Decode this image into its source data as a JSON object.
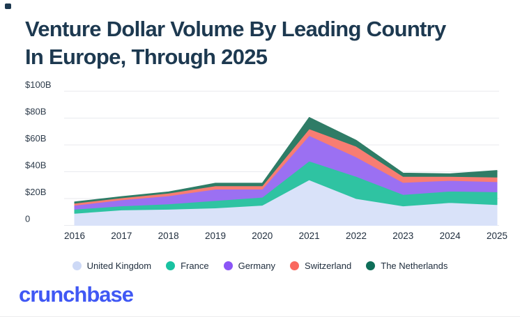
{
  "title": {
    "line1": "Venture Dollar Volume By Leading Country",
    "line2": "In Europe, Through 2025"
  },
  "footer": {
    "logo_text": "crunchbase",
    "logo_color": "#4058f4"
  },
  "colors": {
    "title_text": "#1d3950",
    "axis_text": "#2e3c4b",
    "gridline": "#e9eaee",
    "background": "#ffffff"
  },
  "chart_data": {
    "type": "area",
    "stacked": true,
    "title": "Venture Dollar Volume By Leading Country In Europe, Through 2025",
    "x": [
      2016,
      2017,
      2018,
      2019,
      2020,
      2021,
      2022,
      2023,
      2024,
      2025
    ],
    "x_tick_labels": [
      "2016",
      "2017",
      "2018",
      "2019",
      "2020",
      "2021",
      "2022",
      "2023",
      "2024",
      "2025"
    ],
    "unit": "$B",
    "series": [
      {
        "name": "United Kingdom",
        "color": "#d9e2f9",
        "legend_color": "#cdd9f6",
        "values": [
          9,
          11.5,
          12,
          13,
          15,
          34,
          20,
          14.5,
          17,
          15.5
        ]
      },
      {
        "name": "France",
        "color": "#2fc3a2",
        "legend_color": "#19c2a1",
        "values": [
          3,
          3,
          4,
          5.5,
          6,
          14,
          16.5,
          8.5,
          8.5,
          9.5
        ]
      },
      {
        "name": "Germany",
        "color": "#9b70f2",
        "legend_color": "#8b55f6",
        "values": [
          3,
          4.5,
          6,
          8.5,
          6,
          19,
          14.5,
          9,
          8,
          7.5
        ]
      },
      {
        "name": "Switzerland",
        "color": "#f87d72",
        "legend_color": "#fa685f",
        "values": [
          1.5,
          1.5,
          2,
          2.5,
          2.5,
          5,
          8,
          4.5,
          3,
          3.5
        ]
      },
      {
        "name": "The Netherlands",
        "color": "#2f7c66",
        "legend_color": "#0e6e59",
        "values": [
          1,
          1,
          1,
          2,
          2,
          8.5,
          4.5,
          2.5,
          2,
          5
        ]
      }
    ],
    "y_tick_labels": [
      "$100B",
      "$80B",
      "$60B",
      "$40B",
      "$20B",
      "0"
    ],
    "y_tick_values": [
      100,
      80,
      60,
      40,
      20,
      0
    ],
    "ylim": [
      0,
      100
    ],
    "grid": true,
    "legend_position": "bottom"
  }
}
